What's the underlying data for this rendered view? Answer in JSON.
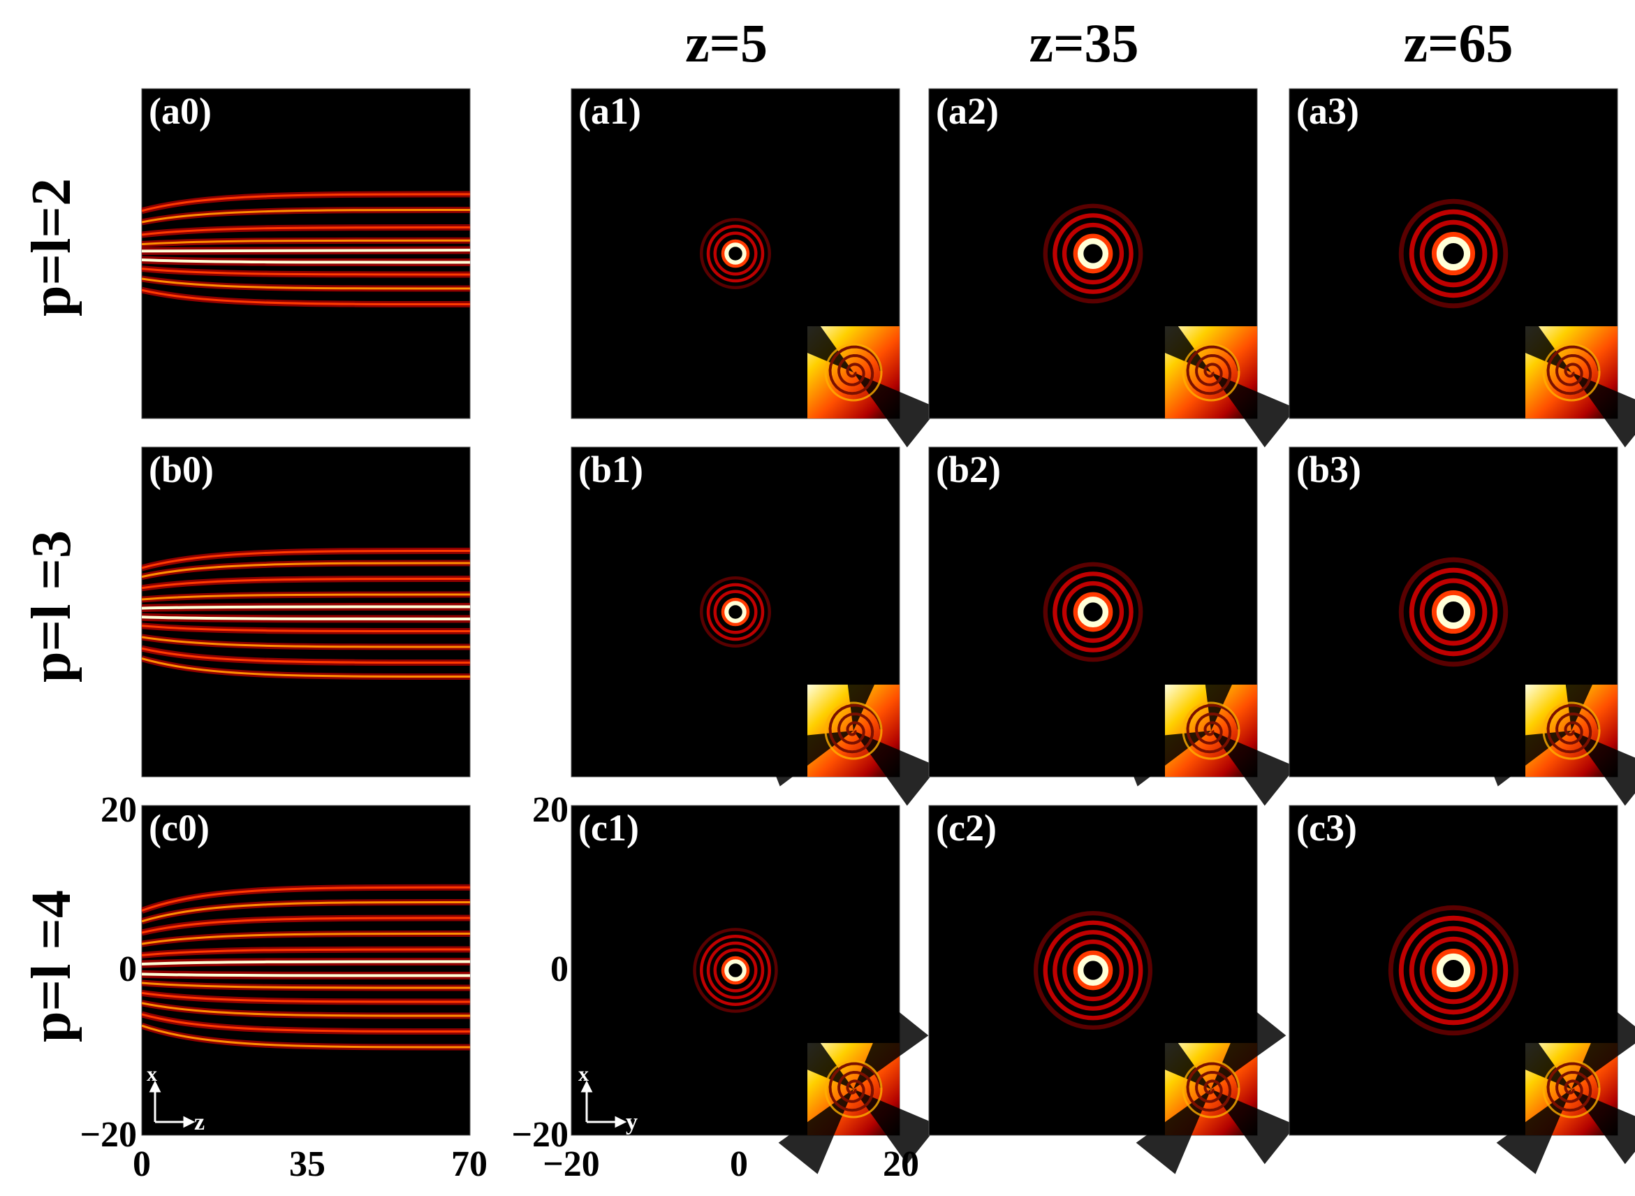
{
  "figure": {
    "columns": [
      "z=5",
      "z=35",
      "z=65"
    ],
    "rows": [
      {
        "label": "p=l=2",
        "sectors": 2
      },
      {
        "label": "p=l =3",
        "sectors": 3
      },
      {
        "label": "p=l =4",
        "sectors": 4
      }
    ],
    "panel_labels": [
      [
        "(a0)",
        "(a1)",
        "(a2)",
        "(a3)"
      ],
      [
        "(b0)",
        "(b1)",
        "(b2)",
        "(b3)"
      ],
      [
        "(c0)",
        "(c1)",
        "(c2)",
        "(c3)"
      ]
    ],
    "propagation_axes": {
      "x_ticks": [
        "0",
        "35",
        "70"
      ],
      "y_ticks": [
        "20",
        "0",
        "−20"
      ],
      "axis_names": [
        "x",
        "z"
      ]
    },
    "transverse_axes": {
      "x_ticks": [
        "−20",
        "0",
        "20"
      ],
      "y_ticks": [
        "20",
        "0",
        "−20"
      ],
      "axis_names": [
        "x",
        "y"
      ]
    },
    "colors": {
      "background": "#000000",
      "colormap": [
        "#000000",
        "#5a0000",
        "#c00000",
        "#ff3a00",
        "#ff9000",
        "#ffe040",
        "#ffffd8"
      ]
    }
  }
}
